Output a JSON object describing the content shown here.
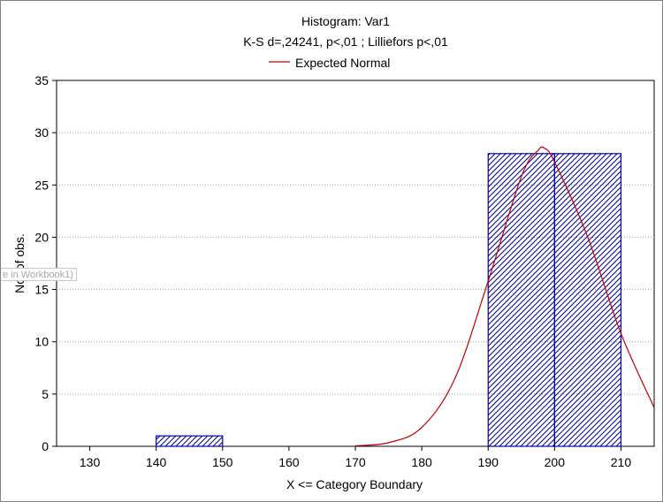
{
  "chart_data": {
    "type": "bar",
    "title": "Histogram: Var1",
    "subtitle": "K-S d=,24241, p<,01 ; Lilliefors p<,01",
    "xlabel": "X <= Category Boundary",
    "ylabel": "No. of obs.",
    "xlim": [
      125,
      215
    ],
    "ylim": [
      0,
      35
    ],
    "x_ticks": [
      130,
      140,
      150,
      160,
      170,
      180,
      190,
      200,
      210
    ],
    "y_ticks": [
      0,
      5,
      10,
      15,
      20,
      25,
      30,
      35
    ],
    "grid": true,
    "legend_position": "top-center",
    "series": [
      {
        "kind": "histogram",
        "bins": [
          {
            "from": 140,
            "to": 150,
            "count": 1
          },
          {
            "from": 190,
            "to": 200,
            "count": 28
          },
          {
            "from": 200,
            "to": 210,
            "count": 28
          }
        ],
        "color": "#0000aa",
        "hatch": "diagonal"
      },
      {
        "name": "Expected Normal",
        "kind": "line",
        "color": "#c00000",
        "x": [
          170,
          175,
          180,
          185,
          190,
          195,
          197.5,
          198.5,
          200,
          205,
          210,
          215
        ],
        "y": [
          0.05,
          0.35,
          1.8,
          6.5,
          15.8,
          25.8,
          28.3,
          28.5,
          27.2,
          20.0,
          10.8,
          3.7
        ]
      }
    ]
  },
  "overlay_tag": "e in Workbook1)"
}
